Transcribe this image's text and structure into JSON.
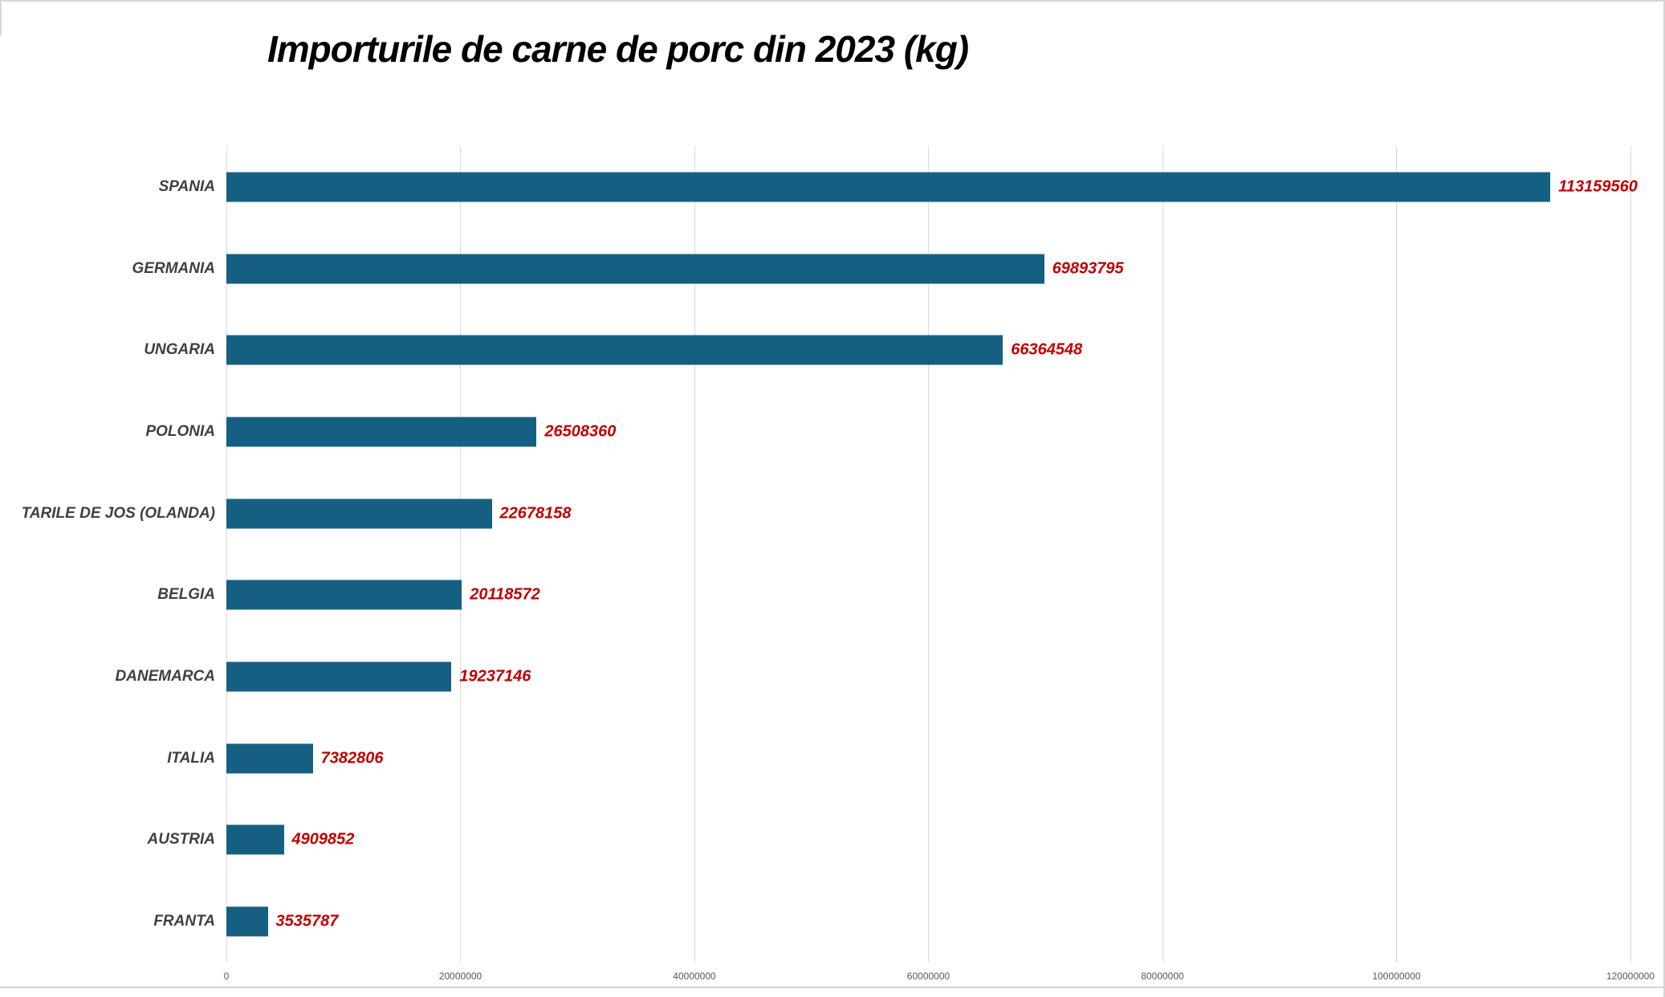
{
  "page": {
    "background_color": "#FFFFFF",
    "frame_line_color": "#D6D6D6"
  },
  "chart": {
    "title": "Importurile de carne de porc din 2023 (kg)",
    "title_color": "#000000",
    "bar_color": "#156082",
    "value_label_color": "#C00000",
    "category_label_color": "#404040",
    "tick_label_color": "#595959",
    "gridline_color": "#D9D9D9"
  },
  "chart_data": {
    "type": "bar",
    "orientation": "horizontal",
    "title": "Importurile de carne de porc din 2023 (kg)",
    "categories": [
      "SPANIA",
      "GERMANIA",
      "UNGARIA",
      "POLONIA",
      "TARILE DE JOS (OLANDA)",
      "BELGIA",
      "DANEMARCA",
      "ITALIA",
      "AUSTRIA",
      "FRANTA"
    ],
    "values": [
      113159560,
      69893795,
      66364548,
      26508360,
      22678158,
      20118572,
      19237146,
      7382806,
      4909852,
      3535787
    ],
    "value_labels": [
      "113159560",
      "69893795",
      "66364548",
      "26508360",
      "22678158",
      "20118572",
      "19237146",
      "7382806",
      "4909852",
      "3535787"
    ],
    "xlabel": "",
    "ylabel": "",
    "xlim": [
      0,
      120000000
    ],
    "x_ticks": [
      0,
      20000000,
      40000000,
      60000000,
      80000000,
      100000000,
      120000000
    ],
    "x_tick_labels": [
      "0",
      "20000000",
      "40000000",
      "60000000",
      "80000000",
      "100000000",
      "120000000"
    ],
    "grid": "vertical-gridlines-on",
    "legend": "none",
    "data_labels": "shown-outside-end-red"
  }
}
